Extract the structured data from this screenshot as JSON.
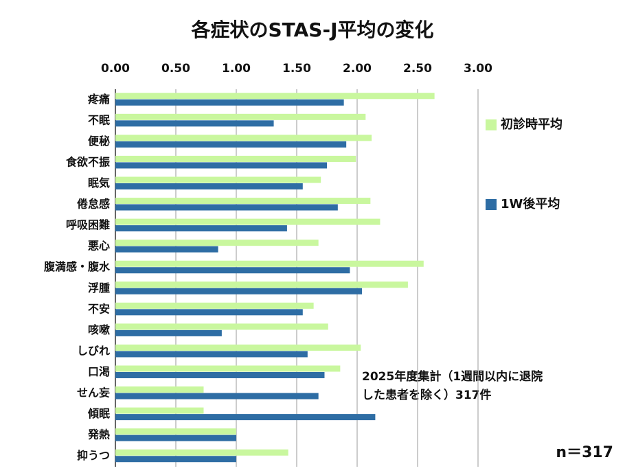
{
  "chart_data": {
    "type": "hbar",
    "title": "各症状のSTAS-J平均の変化",
    "categories": [
      "疼痛",
      "不眠",
      "便秘",
      "食欲不振",
      "眠気",
      "倦怠感",
      "呼吸困難",
      "悪心",
      "腹満感・腹水",
      "浮腫",
      "不安",
      "咳嗽",
      "しびれ",
      "口渇",
      "せん妄",
      "傾眠",
      "発熱",
      "抑うつ"
    ],
    "series": [
      {
        "name": "初診時平均",
        "color": "#c9f79e",
        "values": [
          2.64,
          2.07,
          2.12,
          1.99,
          1.7,
          2.11,
          2.19,
          1.68,
          2.55,
          2.42,
          1.64,
          1.76,
          2.03,
          1.86,
          0.73,
          0.73,
          1.0,
          1.43
        ]
      },
      {
        "name": "1W後平均",
        "color": "#2e6da4",
        "values": [
          1.89,
          1.31,
          1.91,
          1.75,
          1.55,
          1.84,
          1.42,
          0.85,
          1.94,
          2.04,
          1.55,
          0.88,
          1.59,
          1.73,
          1.68,
          2.15,
          1.0,
          1.0
        ]
      }
    ],
    "xlim": [
      0,
      3
    ],
    "xticks": [
      {
        "value": 0,
        "label": "0.00"
      },
      {
        "value": 0.5,
        "label": "0.50"
      },
      {
        "value": 1,
        "label": "1.00"
      },
      {
        "value": 1.5,
        "label": "1.50"
      },
      {
        "value": 2,
        "label": "2.00"
      },
      {
        "value": 2.5,
        "label": "2.50"
      },
      {
        "value": 3,
        "label": "3.00"
      }
    ],
    "grid": true,
    "legend": "right",
    "annotation": [
      "2025年度集計（1週間以内に退院",
      "した患者を除く）317件"
    ],
    "note": "n＝317"
  }
}
